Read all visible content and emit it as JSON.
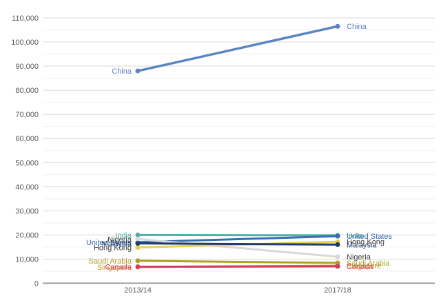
{
  "chart_data": {
    "type": "line",
    "subtype": "slope-chart",
    "title": "",
    "x_categories": [
      "2013/14",
      "2017/18"
    ],
    "y_axis": {
      "min": 0,
      "max": 110000,
      "major_step": 10000,
      "minor_step": 5000,
      "tick_labels": [
        "0",
        "10,000",
        "20,000",
        "30,000",
        "40,000",
        "50,000",
        "60,000",
        "70,000",
        "80,000",
        "90,000",
        "100,000",
        "110,000"
      ]
    },
    "grid": "major and minor horizontal gridlines",
    "legend_position": "labels at both line endpoints",
    "colors": {
      "axis_line": "#9a9a9a",
      "major_gridline": "#d9d9d9",
      "minor_gridline": "#f0f0f0",
      "tick_text": "#595959"
    },
    "series": [
      {
        "name": "China",
        "color": "#5b84c4",
        "values": [
          88000,
          106500
        ],
        "line_width": 3.5
      },
      {
        "name": "India",
        "color": "#4fb0ab",
        "values": [
          20000,
          19850
        ],
        "line_width": 3
      },
      {
        "name": "United States",
        "color": "#3a6cb0",
        "values": [
          17000,
          19500
        ],
        "line_width": 3
      },
      {
        "name": "Nigeria",
        "color": "#d8d8d8",
        "label_color": "#404040",
        "values": [
          18300,
          11000
        ],
        "line_width": 3
      },
      {
        "name": "Hong Kong",
        "color": "#e6d04f",
        "label_color": "#404040",
        "values": [
          14800,
          17200
        ],
        "line_width": 3
      },
      {
        "name": "Malaysia",
        "color": "#1e3c66",
        "values": [
          16500,
          16000
        ],
        "line_width": 3
      },
      {
        "name": "Singapore",
        "color": "#c79b2c",
        "values": [
          6750,
          7250
        ],
        "line_width": 3
      },
      {
        "name": "Saudi Arabia",
        "color": "#b0a023",
        "values": [
          9300,
          8400
        ],
        "line_width": 3
      },
      {
        "name": "Canada",
        "color": "#d63960",
        "values": [
          6800,
          7000
        ],
        "line_width": 3
      }
    ]
  }
}
